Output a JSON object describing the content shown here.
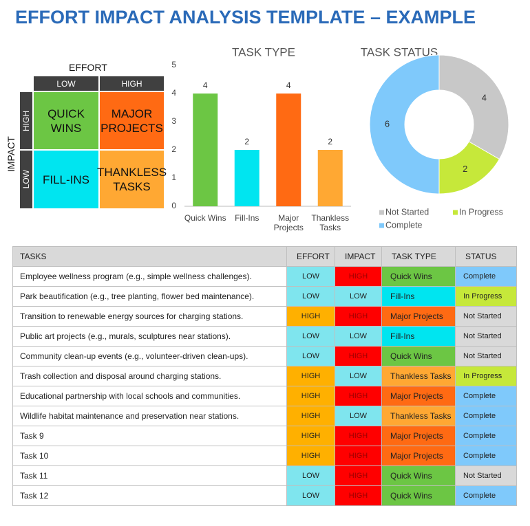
{
  "header": {
    "title": "EFFORT IMPACT ANALYSIS TEMPLATE – EXAMPLE"
  },
  "matrix": {
    "effort_label": "EFFORT",
    "impact_label": "IMPACT",
    "effort_levels": [
      "LOW",
      "HIGH"
    ],
    "impact_levels": [
      "HIGH",
      "LOW"
    ],
    "cells": [
      [
        {
          "label": "QUICK WINS",
          "color": "#6cc644"
        },
        {
          "label": "MAJOR PROJECTS",
          "color": "#ff6a13"
        }
      ],
      [
        {
          "label": "FILL-INS",
          "color": "#00e5f0"
        },
        {
          "label": "THANKLESS TASKS",
          "color": "#ffa833"
        }
      ]
    ]
  },
  "chart_data": [
    {
      "type": "bar",
      "title": "TASK TYPE",
      "categories": [
        "Quick Wins",
        "Fill-Ins",
        "Major Projects",
        "Thankless Tasks"
      ],
      "values": [
        4,
        2,
        4,
        2
      ],
      "colors": [
        "#6cc644",
        "#00e5f0",
        "#ff6a13",
        "#ffa833"
      ],
      "ylim": [
        0,
        5
      ],
      "yticks": [
        0,
        1,
        2,
        3,
        4,
        5
      ],
      "grid": false
    },
    {
      "type": "donut",
      "title": "TASK STATUS",
      "categories": [
        "Not Started",
        "In Progress",
        "Complete"
      ],
      "values": [
        4,
        2,
        6
      ],
      "colors": [
        "#c8c8c8",
        "#c6e83a",
        "#7fc9fb"
      ],
      "legend": "bottom"
    }
  ],
  "table": {
    "columns": [
      "TASKS",
      "EFFORT",
      "IMPACT",
      "TASK TYPE",
      "STATUS"
    ],
    "column_colors": [
      {},
      {
        "LOW": {
          "fill": "#7fe5ee",
          "text": "#222"
        },
        "HIGH": {
          "fill": "#ffb000",
          "text": "#222"
        }
      },
      {
        "LOW": {
          "fill": "#7fe5ee",
          "text": "#222"
        },
        "HIGH": {
          "fill": "#ff0000",
          "text": "#9a0000"
        }
      },
      {
        "Quick Wins": {
          "fill": "#6cc644",
          "text": "#222"
        },
        "Fill-Ins": {
          "fill": "#00e5f0",
          "text": "#222"
        },
        "Major Projects": {
          "fill": "#ff6a13",
          "text": "#222"
        },
        "Thankless Tasks": {
          "fill": "#ffa833",
          "text": "#222"
        }
      },
      {
        "Complete": {
          "fill": "#7fc9fb",
          "text": "#222"
        },
        "In Progress": {
          "fill": "#c6e83a",
          "text": "#222"
        },
        "Not Started": {
          "fill": "#d9d9d9",
          "text": "#222"
        }
      }
    ],
    "rows": [
      [
        "Employee wellness program (e.g., simple wellness challenges).",
        "LOW",
        "HIGH",
        "Quick Wins",
        "Complete"
      ],
      [
        "Park beautification (e.g., tree planting, flower bed maintenance).",
        "LOW",
        "LOW",
        "Fill-Ins",
        "In Progress"
      ],
      [
        "Transition to renewable energy sources for charging stations.",
        "HIGH",
        "HIGH",
        "Major Projects",
        "Not Started"
      ],
      [
        "Public art projects (e.g., murals, sculptures near stations).",
        "LOW",
        "LOW",
        "Fill-Ins",
        "Not Started"
      ],
      [
        "Community clean-up events (e.g., volunteer-driven clean-ups).",
        "LOW",
        "HIGH",
        "Quick Wins",
        "Not Started"
      ],
      [
        "Trash collection and disposal around charging stations.",
        "HIGH",
        "LOW",
        "Thankless Tasks",
        "In Progress"
      ],
      [
        "Educational partnership with local schools and communities.",
        "HIGH",
        "HIGH",
        "Major Projects",
        "Complete"
      ],
      [
        "Wildlife habitat maintenance and preservation near stations.",
        "HIGH",
        "LOW",
        "Thankless Tasks",
        "Complete"
      ],
      [
        "Task 9",
        "HIGH",
        "HIGH",
        "Major Projects",
        "Complete"
      ],
      [
        "Task 10",
        "HIGH",
        "HIGH",
        "Major Projects",
        "Complete"
      ],
      [
        "Task 11",
        "LOW",
        "HIGH",
        "Quick Wins",
        "Not Started"
      ],
      [
        "Task 12",
        "LOW",
        "HIGH",
        "Quick Wins",
        "Complete"
      ]
    ]
  }
}
